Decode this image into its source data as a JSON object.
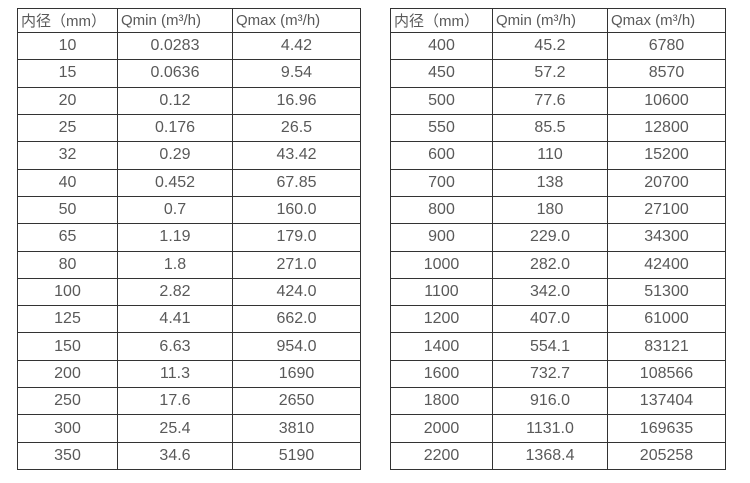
{
  "page": {
    "background": "#ffffff",
    "text_color": "#595959",
    "border_color": "#333333"
  },
  "tables": [
    {
      "id": "left",
      "headers": [
        "内径（mm）",
        "Qmin (m³/h)",
        "Qmax (m³/h)"
      ],
      "column_keys": [
        "diameter",
        "qmin",
        "qmax"
      ],
      "rows": [
        [
          "10",
          "0.0283",
          "4.42"
        ],
        [
          "15",
          "0.0636",
          "9.54"
        ],
        [
          "20",
          "0.12",
          "16.96"
        ],
        [
          "25",
          "0.176",
          "26.5"
        ],
        [
          "32",
          "0.29",
          "43.42"
        ],
        [
          "40",
          "0.452",
          "67.85"
        ],
        [
          "50",
          "0.7",
          "160.0"
        ],
        [
          "65",
          "1.19",
          "179.0"
        ],
        [
          "80",
          "1.8",
          "271.0"
        ],
        [
          "100",
          "2.82",
          "424.0"
        ],
        [
          "125",
          "4.41",
          "662.0"
        ],
        [
          "150",
          "6.63",
          "954.0"
        ],
        [
          "200",
          "11.3",
          "1690"
        ],
        [
          "250",
          "17.6",
          "2650"
        ],
        [
          "300",
          "25.4",
          "3810"
        ],
        [
          "350",
          "34.6",
          "5190"
        ]
      ]
    },
    {
      "id": "right",
      "headers": [
        "内径（mm）",
        "Qmin (m³/h)",
        "Qmax (m³/h)"
      ],
      "column_keys": [
        "diameter",
        "qmin",
        "qmax"
      ],
      "rows": [
        [
          "400",
          "45.2",
          "6780"
        ],
        [
          "450",
          "57.2",
          "8570"
        ],
        [
          "500",
          "77.6",
          "10600"
        ],
        [
          "550",
          "85.5",
          "12800"
        ],
        [
          "600",
          "110",
          "15200"
        ],
        [
          "700",
          "138",
          "20700"
        ],
        [
          "800",
          "180",
          "27100"
        ],
        [
          "900",
          "229.0",
          "34300"
        ],
        [
          "1000",
          "282.0",
          "42400"
        ],
        [
          "1100",
          "342.0",
          "51300"
        ],
        [
          "1200",
          "407.0",
          "61000"
        ],
        [
          "1400",
          "554.1",
          "83121"
        ],
        [
          "1600",
          "732.7",
          "108566"
        ],
        [
          "1800",
          "916.0",
          "137404"
        ],
        [
          "2000",
          "1131.0",
          "169635"
        ],
        [
          "2200",
          "1368.4",
          "205258"
        ]
      ]
    }
  ]
}
